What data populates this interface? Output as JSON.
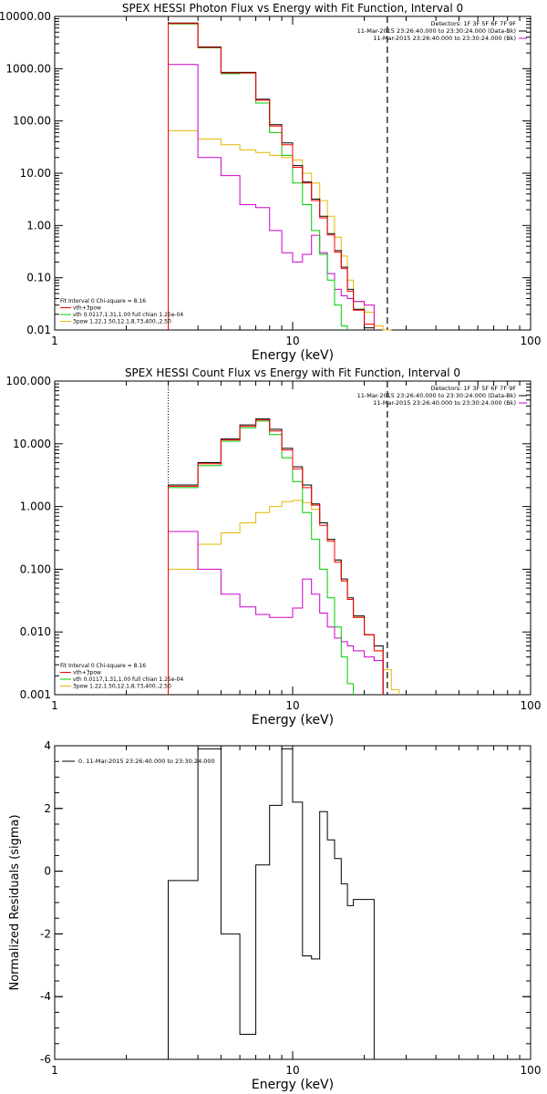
{
  "chart_data": [
    {
      "type": "line",
      "title": "SPEX HESSI Photon Flux vs Energy with Fit Function, Interval 0",
      "xlabel": "Energy (keV)",
      "ylabel": "",
      "xscale": "log",
      "yscale": "log",
      "xlim": [
        1,
        100
      ],
      "ylim": [
        0.01,
        10000
      ],
      "xticks": [
        1,
        10,
        100
      ],
      "xtick_labels": [
        "1",
        "10",
        "100"
      ],
      "yticks": [
        0.01,
        0.1,
        1,
        10,
        100,
        1000,
        10000
      ],
      "ytick_labels": [
        "0.01",
        "0.10",
        "1.00",
        "10.00",
        "100.00",
        "1000.00",
        "10000.00"
      ],
      "info_lines": [
        "Detectors: 1F 3F 5F 6F 7F 9F",
        "11-Mar-2015 23:26:40.000 to 23:30:24.000 (Data-Bk)",
        "11-Mar-2015 23:26:40.000 to 23:30:24.000 (Bk)"
      ],
      "legend": [
        "Fit Interval 0   Chi-square = 8.16",
        "vth+3pow",
        "vth 0.0117,1.31,1.00  full chian 1.25e-04",
        "3pow 1.22,1.50,12.1,8.73,400.,2.50"
      ],
      "vlines": [
        3,
        25
      ],
      "bin_edges": [
        3,
        4,
        5,
        6,
        7,
        8,
        9,
        10,
        11,
        12,
        13,
        14,
        15,
        16,
        17,
        18,
        20,
        22,
        24,
        26,
        28
      ],
      "series": [
        {
          "name": "",
          "color": "#000000",
          "values": [
            7500,
            2600,
            850,
            850,
            260,
            85,
            38,
            14,
            6.8,
            3.2,
            1.5,
            0.7,
            0.33,
            0.16,
            0.06,
            0.025,
            0.011,
            null,
            null,
            null
          ]
        },
        {
          "name": "vth+3pow",
          "color": "#ff0000",
          "values": [
            7300,
            2550,
            830,
            830,
            250,
            80,
            35,
            13,
            6.5,
            3.0,
            1.4,
            0.66,
            0.31,
            0.15,
            0.055,
            0.024,
            0.013,
            null,
            null,
            null
          ]
        },
        {
          "name": "vth 0.0117,1.31,1.00  full chian 1.25e-04",
          "color": "#00cc00",
          "values": [
            7200,
            2500,
            800,
            820,
            220,
            60,
            22,
            6.5,
            2.5,
            0.8,
            0.28,
            0.09,
            0.03,
            0.012,
            null,
            null,
            null,
            null,
            null,
            null
          ]
        },
        {
          "name": "3pow 1.22,1.50,12.1,8.73,400.,2.50",
          "color": "#e6b800",
          "values": [
            65,
            45,
            35,
            28,
            25,
            22,
            20,
            18,
            10,
            6.5,
            3.0,
            1.5,
            0.6,
            0.26,
            0.09,
            0.035,
            0.022,
            0.012,
            0.009,
            null
          ]
        },
        {
          "name": "",
          "color": "#cc00cc",
          "values": [
            1200,
            20,
            9,
            2.5,
            2.2,
            0.8,
            0.3,
            0.2,
            0.28,
            0.65,
            0.3,
            0.12,
            0.06,
            0.045,
            0.04,
            0.035,
            0.03,
            null,
            null,
            null
          ]
        }
      ]
    },
    {
      "type": "line",
      "title": "SPEX HESSI Count Flux vs Energy with Fit Function, Interval 0",
      "xlabel": "Energy (keV)",
      "ylabel": "",
      "xscale": "log",
      "yscale": "log",
      "xlim": [
        1,
        100
      ],
      "ylim": [
        0.001,
        100
      ],
      "xticks": [
        1,
        10,
        100
      ],
      "xtick_labels": [
        "1",
        "10",
        "100"
      ],
      "yticks": [
        0.001,
        0.01,
        0.1,
        1,
        10,
        100
      ],
      "ytick_labels": [
        "0.001",
        "0.010",
        "0.100",
        "1.000",
        "10.000",
        "100.000"
      ],
      "info_lines": [
        "Detectors: 1F 3F 5F 6F 7F 9F",
        "11-Mar-2015 23:26:40.000 to 23:30:24.000 (Data-Bk)",
        "11-Mar-2015 23:26:40.000 to 23:30:24.000 (Bk)"
      ],
      "legend": [
        "Fit Interval 0   Chi-square = 8.16",
        "vth+3pow",
        "vth 0.0117,1.31,1.00  full chian 1.25e-04",
        "3pow 1.22,1.50,12.1,8.73,400.,2.50"
      ],
      "vlines": [
        3,
        25
      ],
      "bin_edges": [
        3,
        4,
        5,
        6,
        7,
        8,
        9,
        10,
        11,
        12,
        13,
        14,
        15,
        16,
        17,
        18,
        20,
        22,
        24,
        26,
        28
      ],
      "series": [
        {
          "name": "",
          "color": "#000000",
          "values": [
            2.2,
            5.0,
            12,
            20,
            25,
            17,
            8.5,
            4.3,
            2.2,
            1.1,
            0.55,
            0.3,
            0.14,
            0.07,
            0.035,
            0.018,
            0.009,
            0.006,
            null,
            null
          ]
        },
        {
          "name": "vth+3pow",
          "color": "#ff0000",
          "values": [
            2.1,
            4.8,
            11.5,
            19,
            24,
            16,
            8.0,
            4.0,
            2.0,
            1.05,
            0.5,
            0.28,
            0.13,
            0.065,
            0.033,
            0.017,
            0.009,
            0.005,
            null,
            null
          ]
        },
        {
          "name": "vth 0.0117,1.31,1.00  full chian 1.25e-04",
          "color": "#00cc00",
          "values": [
            2.0,
            4.5,
            11,
            18,
            23,
            14,
            6.0,
            2.5,
            0.8,
            0.3,
            0.1,
            0.035,
            0.012,
            0.004,
            0.0015,
            null,
            null,
            null,
            null,
            null
          ]
        },
        {
          "name": "3pow 1.22,1.50,12.1,8.73,400.,2.50",
          "color": "#e6b800",
          "values": [
            0.1,
            0.25,
            0.38,
            0.55,
            0.8,
            1.0,
            1.2,
            1.25,
            1.15,
            0.9,
            0.55,
            0.3,
            0.14,
            0.065,
            0.033,
            0.017,
            0.009,
            0.005,
            0.0025,
            0.0012
          ]
        },
        {
          "name": "",
          "color": "#cc00cc",
          "values": [
            0.4,
            0.1,
            0.04,
            0.025,
            0.019,
            0.017,
            0.017,
            0.024,
            0.07,
            0.04,
            0.02,
            0.012,
            0.008,
            0.007,
            0.006,
            0.005,
            0.004,
            0.0035,
            null,
            null
          ]
        }
      ]
    },
    {
      "type": "line",
      "title": "",
      "xlabel": "Energy (keV)",
      "ylabel": "Normalized Residuals (sigma)",
      "xscale": "log",
      "yscale": "linear",
      "xlim": [
        1,
        100
      ],
      "ylim": [
        -6,
        4
      ],
      "xticks": [
        1,
        10,
        100
      ],
      "xtick_labels": [
        "1",
        "10",
        "100"
      ],
      "yticks": [
        -6,
        -4,
        -2,
        0,
        2,
        4
      ],
      "ytick_labels": [
        "-6",
        "-4",
        "-2",
        "0",
        "2",
        "4"
      ],
      "legend": [
        "0. 11-Mar-2015 23:26:40.000 to 23:30:24.000"
      ],
      "bin_edges": [
        3,
        4,
        5,
        6,
        7,
        8,
        9,
        10,
        11,
        12,
        13,
        14,
        15,
        16,
        17,
        18,
        20,
        22,
        24,
        26
      ],
      "series": [
        {
          "name": "0. 11-Mar-2015 23:26:40.000 to 23:30:24.000",
          "color": "#000000",
          "values": [
            -0.3,
            3.9,
            -2.0,
            -5.2,
            0.2,
            2.1,
            3.9,
            2.2,
            -2.7,
            -2.8,
            1.9,
            1.0,
            0.4,
            -0.4,
            -1.1,
            -0.9,
            -0.9,
            null,
            null
          ]
        }
      ]
    }
  ]
}
